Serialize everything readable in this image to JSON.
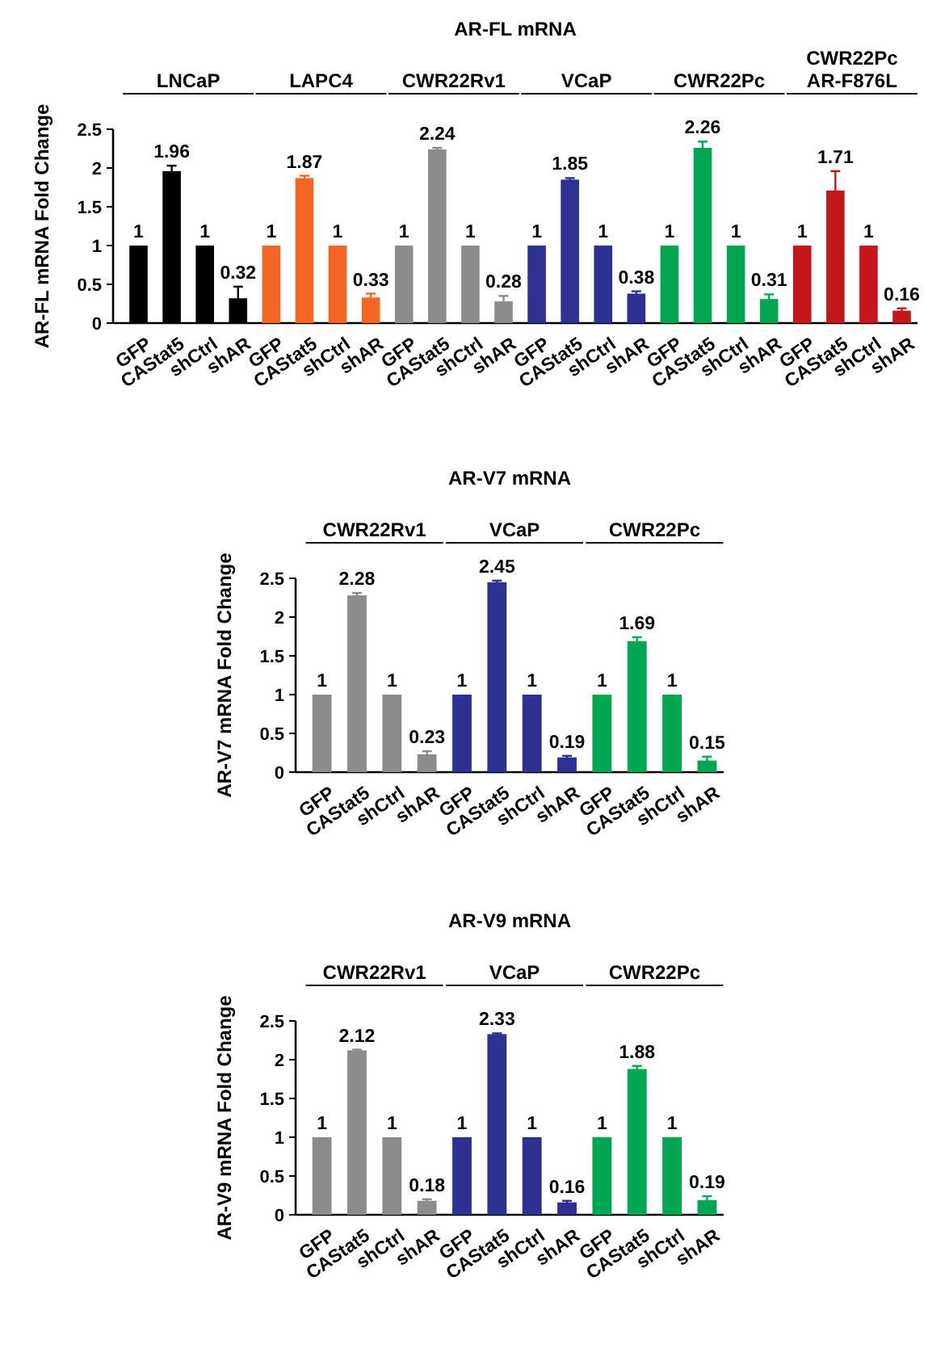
{
  "chart_data": [
    {
      "type": "bar",
      "title": "AR-FL mRNA",
      "ylabel": "AR-FL mRNA Fold Change",
      "categories": [
        "GFP",
        "CAStat5",
        "shCtrl",
        "shAR",
        "GFP",
        "CAStat5",
        "shCtrl",
        "shAR",
        "GFP",
        "CAStat5",
        "shCtrl",
        "shAR",
        "GFP",
        "CAStat5",
        "shCtrl",
        "shAR",
        "GFP",
        "CAStat5",
        "shCtrl",
        "shAR",
        "GFP",
        "CAStat5",
        "shCtrl",
        "shAR"
      ],
      "values": [
        1,
        1.96,
        1,
        0.32,
        1,
        1.87,
        1,
        0.33,
        1,
        2.24,
        1,
        0.28,
        1,
        1.85,
        1,
        0.38,
        1,
        2.26,
        1,
        0.31,
        1,
        1.71,
        1,
        0.16
      ],
      "errors": [
        null,
        0.07,
        null,
        0.15,
        null,
        0.03,
        null,
        0.05,
        null,
        0.02,
        null,
        0.07,
        null,
        0.02,
        null,
        0.03,
        null,
        0.08,
        null,
        0.06,
        null,
        0.25,
        null,
        0.03
      ],
      "colors": [
        "#000000",
        "#000000",
        "#000000",
        "#000000",
        "#f26522",
        "#f26522",
        "#f26522",
        "#f26522",
        "#8c8c8c",
        "#8c8c8c",
        "#8c8c8c",
        "#8c8c8c",
        "#2e3192",
        "#2e3192",
        "#2e3192",
        "#2e3192",
        "#00a651",
        "#00a651",
        "#00a651",
        "#00a651",
        "#c4161c",
        "#c4161c",
        "#c4161c",
        "#c4161c"
      ],
      "ylim": [
        0,
        2.5
      ],
      "yticks": [
        0,
        0.5,
        1,
        1.5,
        2,
        2.5
      ],
      "data_labels": true,
      "annotations": [
        "LNCaP",
        "LAPC4",
        "CWR22Rv1",
        "VCaP",
        "CWR22Pc",
        "CWR22Pc\nAR-F876L"
      ]
    },
    {
      "type": "bar",
      "title": "AR-V7 mRNA",
      "ylabel": "AR-V7 mRNA Fold Change",
      "categories": [
        "GFP",
        "CAStat5",
        "shCtrl",
        "shAR",
        "GFP",
        "CAStat5",
        "shCtrl",
        "shAR",
        "GFP",
        "CAStat5",
        "shCtrl",
        "shAR"
      ],
      "values": [
        1,
        2.28,
        1,
        0.23,
        1,
        2.45,
        1,
        0.19,
        1,
        1.69,
        1,
        0.15
      ],
      "errors": [
        null,
        0.03,
        null,
        0.04,
        null,
        0.02,
        null,
        0.02,
        null,
        0.05,
        null,
        0.05
      ],
      "colors": [
        "#8c8c8c",
        "#8c8c8c",
        "#8c8c8c",
        "#8c8c8c",
        "#2e3192",
        "#2e3192",
        "#2e3192",
        "#2e3192",
        "#00a651",
        "#00a651",
        "#00a651",
        "#00a651"
      ],
      "ylim": [
        0,
        2.5
      ],
      "yticks": [
        0,
        0.5,
        1,
        1.5,
        2,
        2.5
      ],
      "data_labels": true,
      "annotations": [
        "CWR22Rv1",
        "VCaP",
        "CWR22Pc"
      ]
    },
    {
      "type": "bar",
      "title": "AR-V9 mRNA",
      "ylabel": "AR-V9 mRNA Fold Change",
      "categories": [
        "GFP",
        "CAStat5",
        "shCtrl",
        "shAR",
        "GFP",
        "CAStat5",
        "shCtrl",
        "shAR",
        "GFP",
        "CAStat5",
        "shCtrl",
        "shAR"
      ],
      "values": [
        1,
        2.12,
        1,
        0.18,
        1,
        2.33,
        1,
        0.16,
        1,
        1.88,
        1,
        0.19
      ],
      "errors": [
        null,
        0.01,
        null,
        0.02,
        null,
        0.01,
        null,
        0.02,
        null,
        0.04,
        null,
        0.05
      ],
      "colors": [
        "#8c8c8c",
        "#8c8c8c",
        "#8c8c8c",
        "#8c8c8c",
        "#2e3192",
        "#2e3192",
        "#2e3192",
        "#2e3192",
        "#00a651",
        "#00a651",
        "#00a651",
        "#00a651"
      ],
      "ylim": [
        0,
        2.5
      ],
      "yticks": [
        0,
        0.5,
        1,
        1.5,
        2,
        2.5
      ],
      "data_labels": true,
      "annotations": [
        "CWR22Rv1",
        "VCaP",
        "CWR22Pc"
      ]
    }
  ]
}
